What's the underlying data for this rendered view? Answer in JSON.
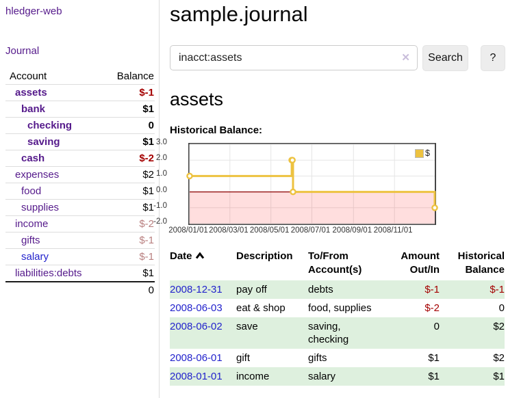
{
  "app": {
    "brand": "hledger-web",
    "nav_journal": "Journal"
  },
  "sidebar": {
    "header": {
      "account": "Account",
      "balance": "Balance"
    },
    "accounts": [
      {
        "label": "assets",
        "balance": "$-1"
      },
      {
        "label": "bank",
        "balance": "$1"
      },
      {
        "label": "checking",
        "balance": "0"
      },
      {
        "label": "saving",
        "balance": "$1"
      },
      {
        "label": "cash",
        "balance": "$-2"
      },
      {
        "label": "expenses",
        "balance": "$2"
      },
      {
        "label": "food",
        "balance": "$1"
      },
      {
        "label": "supplies",
        "balance": "$1"
      },
      {
        "label": "income",
        "balance": "$-2"
      },
      {
        "label": "gifts",
        "balance": "$-1"
      },
      {
        "label": "salary",
        "balance": "$-1"
      },
      {
        "label": "liabilities:debts",
        "balance": "$1"
      }
    ],
    "total": "0"
  },
  "main": {
    "title": "sample.journal",
    "search": {
      "value": "inacct:assets",
      "clear_icon": "✕",
      "button": "Search",
      "help": "?"
    },
    "account_heading": "assets",
    "chart_label": "Historical Balance:"
  },
  "chart_data": {
    "type": "line",
    "step": true,
    "title": "Historical Balance",
    "x_range": [
      "2008-01-01",
      "2008-12-31"
    ],
    "ylim": [
      -2,
      3
    ],
    "y_ticks": [
      3,
      2,
      1,
      0,
      -1,
      -2
    ],
    "x_ticks": [
      "2008-01-01",
      "2008-03-01",
      "2008-05-01",
      "2008-07-01",
      "2008-09-01",
      "2008-11-01"
    ],
    "x_tick_labels": [
      "2008/01/01",
      "2008/03/01",
      "2008/05/01",
      "2008/07/01",
      "2008/09/01",
      "2008/11/01"
    ],
    "grid": true,
    "legend_position": "top-right",
    "negative_region_shaded": true,
    "zero_line_color": "#8b0000",
    "series": [
      {
        "name": "$",
        "color": "#edc240",
        "x": [
          "2008-01-01",
          "2008-06-01",
          "2008-06-02",
          "2008-06-03",
          "2008-12-31"
        ],
        "y": [
          1,
          2,
          2,
          0,
          -1
        ]
      }
    ]
  },
  "register": {
    "headers": {
      "date": "Date",
      "description": "Description",
      "accounts": "To/From Account(s)",
      "amount": "Amount Out/In",
      "balance": "Historical Balance"
    },
    "rows": [
      {
        "date": "2008-12-31",
        "description": "pay off",
        "accounts": "debts",
        "amount": "$-1",
        "balance": "$-1"
      },
      {
        "date": "2008-06-03",
        "description": "eat & shop",
        "accounts": "food, supplies",
        "amount": "$-2",
        "balance": "0"
      },
      {
        "date": "2008-06-02",
        "description": "save",
        "accounts": "saving, checking",
        "amount": "0",
        "balance": "$2"
      },
      {
        "date": "2008-06-01",
        "description": "gift",
        "accounts": "gifts",
        "amount": "$1",
        "balance": "$2"
      },
      {
        "date": "2008-01-01",
        "description": "income",
        "accounts": "salary",
        "amount": "$1",
        "balance": "$1"
      }
    ]
  }
}
